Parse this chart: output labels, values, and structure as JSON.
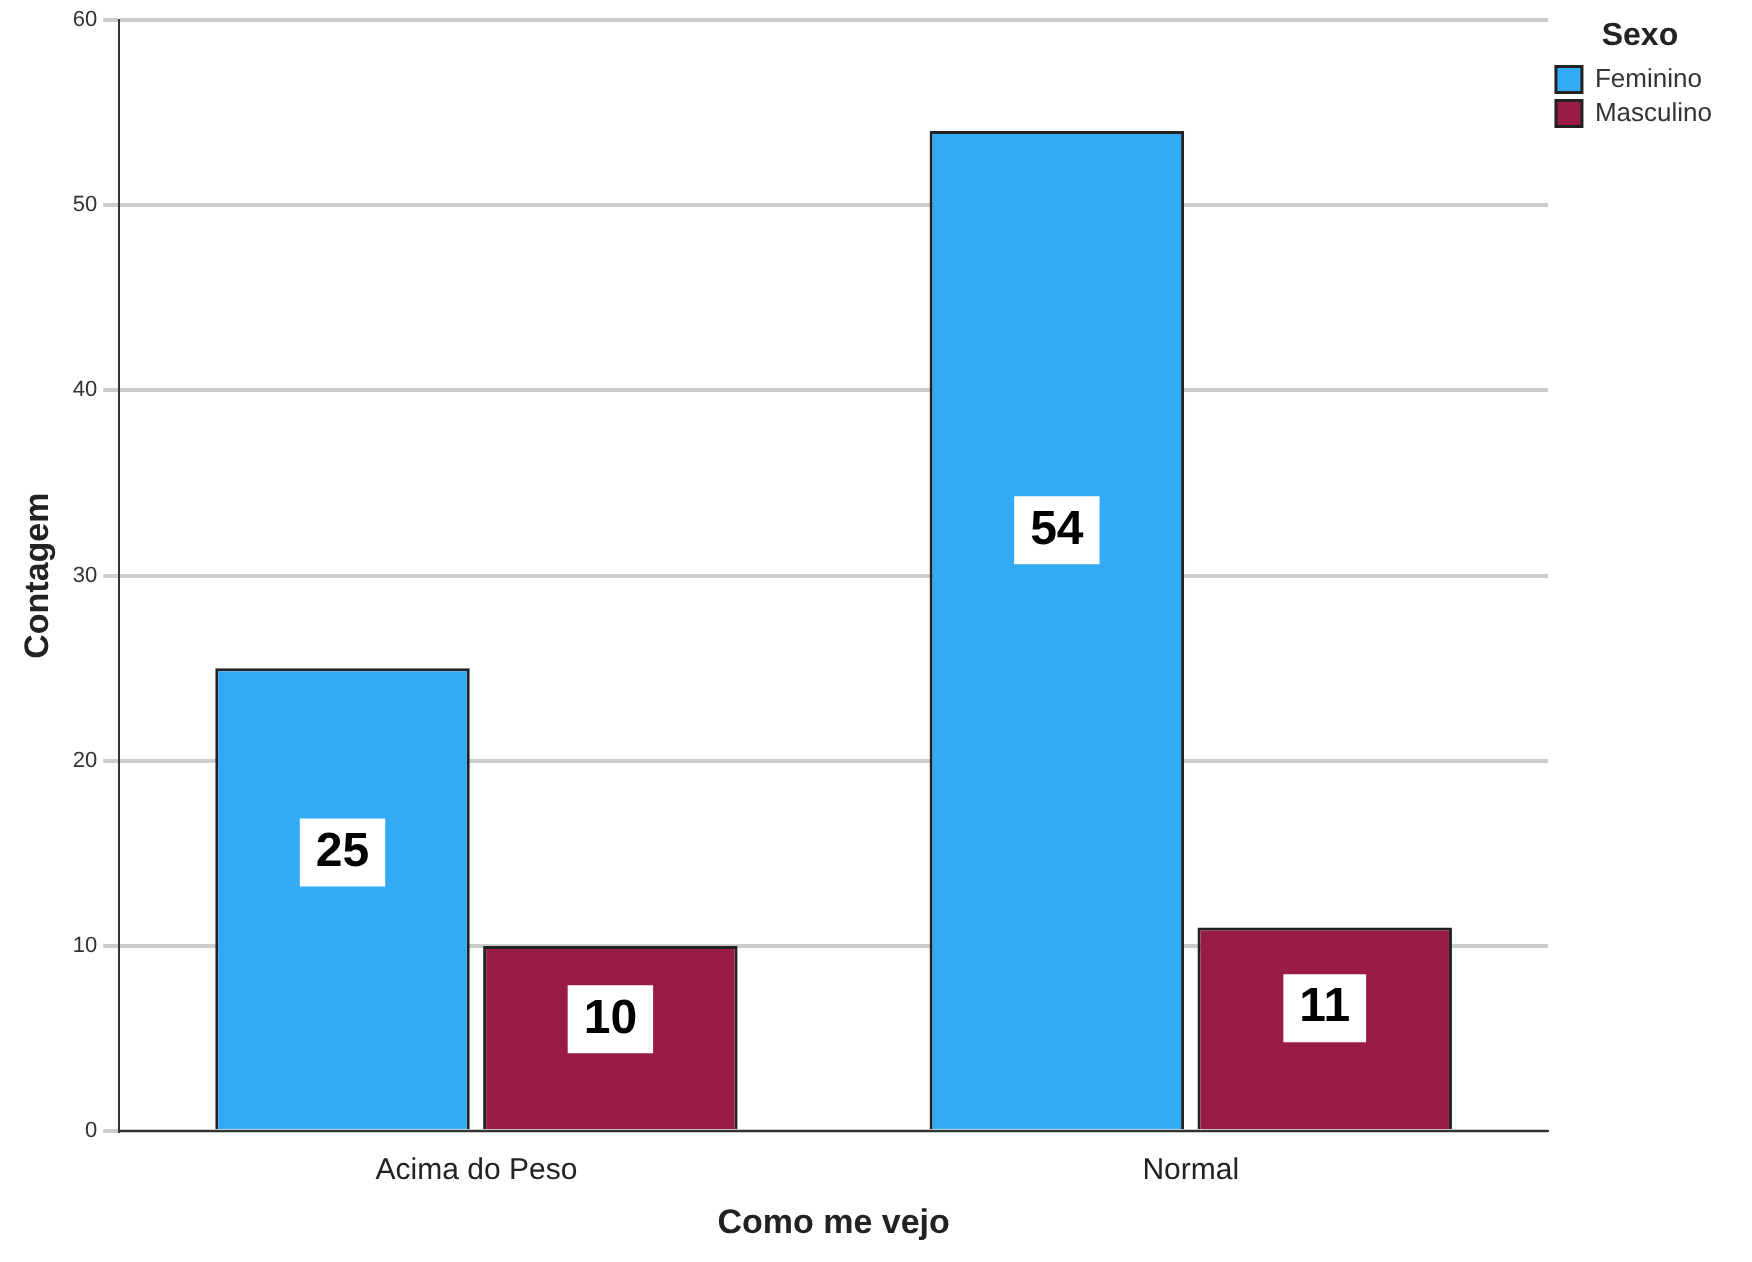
{
  "chart_data": {
    "type": "bar",
    "xlabel": "Como me vejo",
    "ylabel": "Contagem",
    "legend_title": "Sexo",
    "categories": [
      "Acima do Peso",
      "Normal"
    ],
    "series": [
      {
        "name": "Feminino",
        "color": "#33aaf5",
        "values": [
          25,
          54
        ]
      },
      {
        "name": "Masculino",
        "color": "#9b1b48",
        "values": [
          10,
          11
        ]
      }
    ],
    "ylim": [
      0,
      60
    ],
    "yticks": [
      0,
      10,
      20,
      30,
      40,
      50,
      60
    ],
    "grid": "y",
    "legend": "top right",
    "data_labels": true
  }
}
